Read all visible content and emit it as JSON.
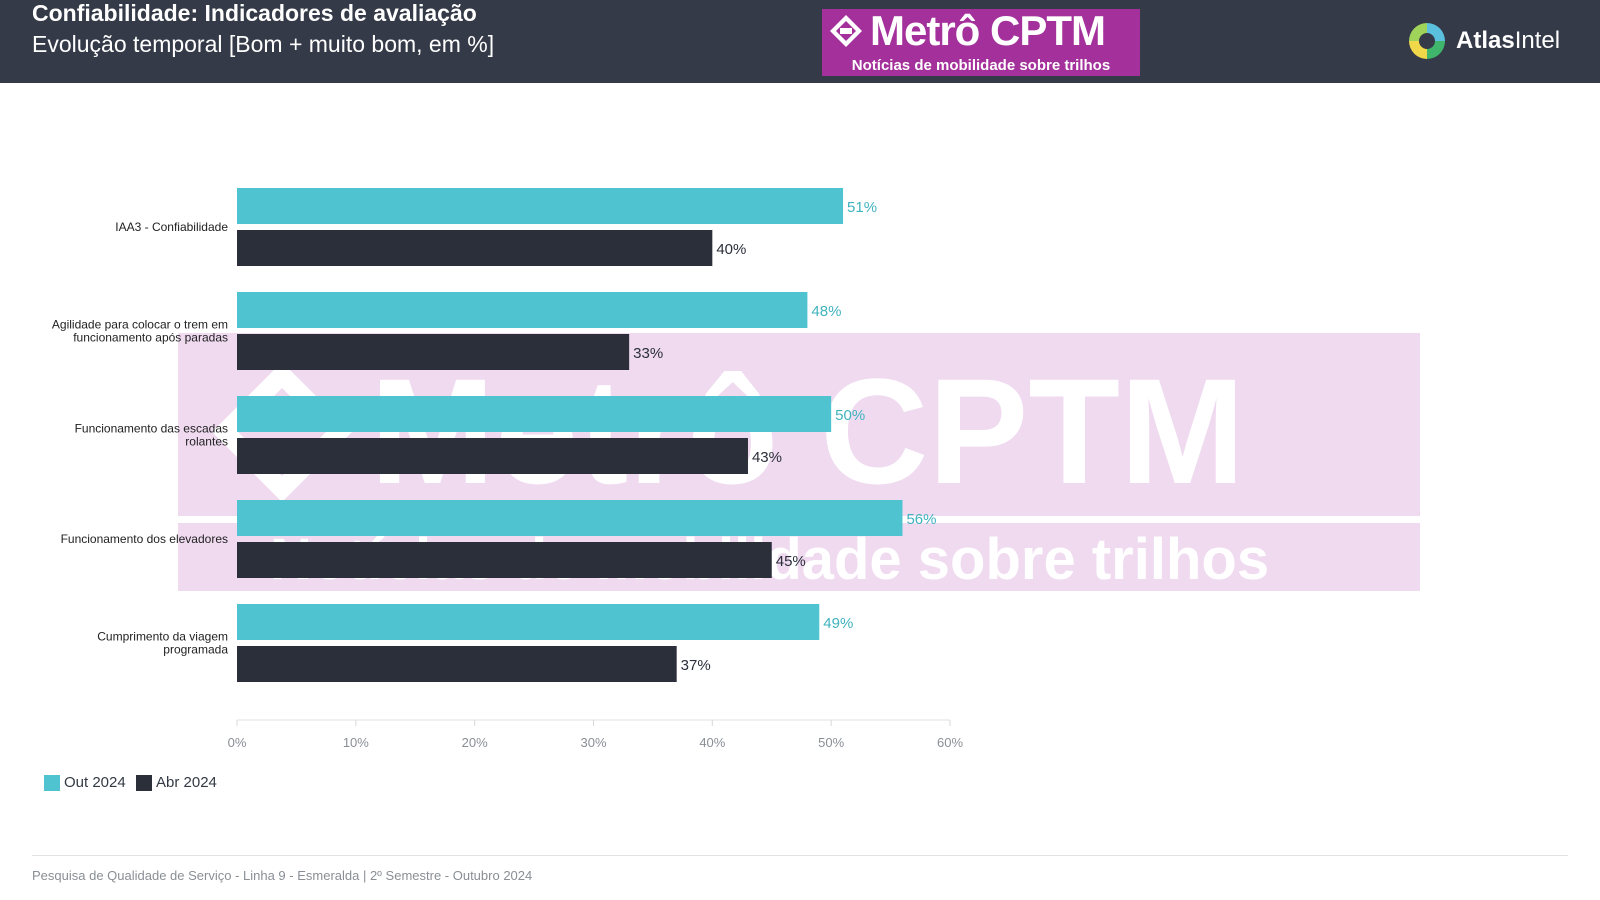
{
  "header": {
    "title": "Confiabilidade: Indicadores de avaliação",
    "subtitle": "Evolução temporal [Bom + muito bom, em %]",
    "logo_main": "Metrô CPTM",
    "logo_sub": "Notícias de mobilidade sobre trilhos",
    "brand_name_bold": "Atlas",
    "brand_name_light": "Intel"
  },
  "watermark": {
    "main": "Metrô CPTM",
    "sub": "Notícias de mobilidade sobre trilhos"
  },
  "colors": {
    "header_bg": "#343a47",
    "out_2024": "#4fc3cf",
    "abr_2024": "#2b2f3a",
    "watermark_bg": "#efdaf0",
    "logo_bg": "#a3309b"
  },
  "chart_data": {
    "type": "bar",
    "orientation": "horizontal",
    "categories": [
      "IAA3 - Confiabilidade",
      "Agilidade para colocar o trem em funcionamento após paradas",
      "Funcionamento das escadas rolantes",
      "Funcionamento dos elevadores",
      "Cumprimento da viagem programada"
    ],
    "category_lines": [
      [
        "IAA3 - Confiabilidade"
      ],
      [
        "Agilidade para colocar o trem em",
        "funcionamento após paradas"
      ],
      [
        "Funcionamento das escadas",
        "rolantes"
      ],
      [
        "Funcionamento dos elevadores"
      ],
      [
        "Cumprimento da viagem",
        "programada"
      ]
    ],
    "series": [
      {
        "name": "Out 2024",
        "values": [
          51,
          48,
          50,
          56,
          49
        ],
        "labels": [
          "51%",
          "48%",
          "50%",
          "56%",
          "49%"
        ]
      },
      {
        "name": "Abr 2024",
        "values": [
          40,
          33,
          43,
          45,
          37
        ],
        "labels": [
          "40%",
          "33%",
          "43%",
          "45%",
          "37%"
        ]
      }
    ],
    "xlim": [
      0,
      60
    ],
    "x_ticks": [
      0,
      10,
      20,
      30,
      40,
      50,
      60
    ],
    "x_tick_labels": [
      "0%",
      "10%",
      "20%",
      "30%",
      "40%",
      "50%",
      "60%"
    ],
    "grid": false,
    "legend_position": "bottom-left"
  },
  "footer": {
    "text": "Pesquisa de Qualidade de Serviço - Linha 9 - Esmeralda | 2º Semestre - Outubro 2024"
  }
}
